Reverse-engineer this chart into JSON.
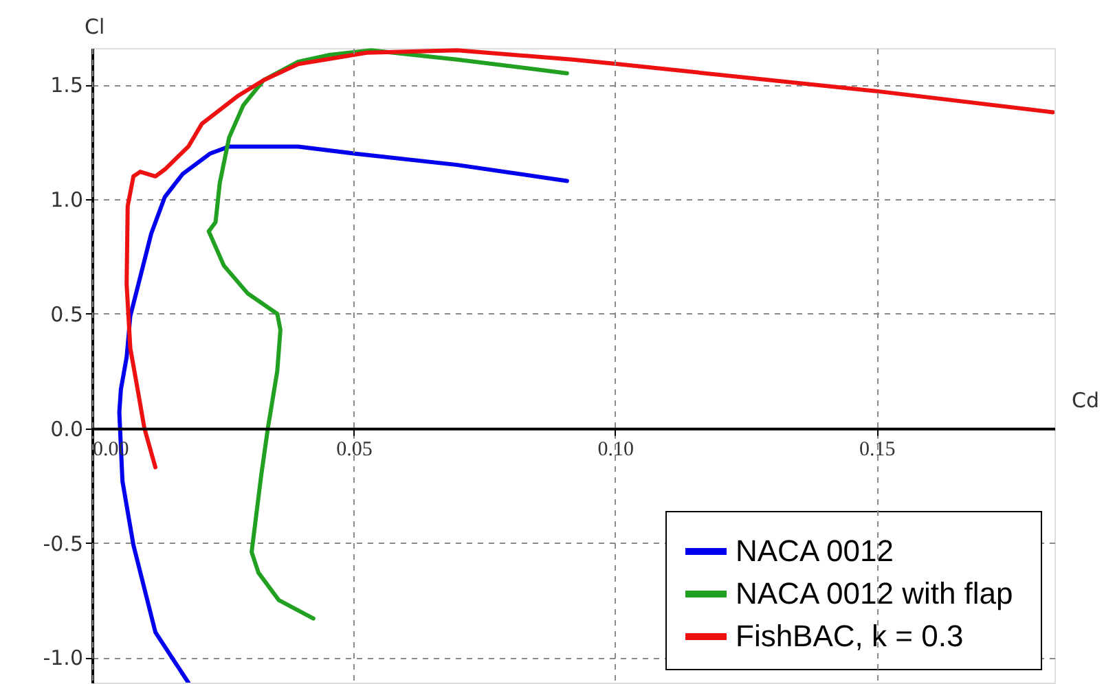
{
  "chart_data": {
    "type": "line",
    "xlabel": "Cd",
    "ylabel": "Cl",
    "xlim": [
      0,
      0.184
    ],
    "ylim": [
      -1.11,
      1.66
    ],
    "xticks": [
      {
        "value": 0,
        "label": "0.00"
      },
      {
        "value": 0.05,
        "label": "0.05"
      },
      {
        "value": 0.1,
        "label": "0.10"
      },
      {
        "value": 0.15,
        "label": "0.15"
      }
    ],
    "yticks": [
      {
        "value": -1,
        "label": "-1.0"
      },
      {
        "value": -0.5,
        "label": "-0.5"
      },
      {
        "value": 0,
        "label": "0.0"
      },
      {
        "value": 0.5,
        "label": "0.5"
      },
      {
        "value": 1,
        "label": "1.0"
      },
      {
        "value": 1.5,
        "label": "1.5"
      }
    ],
    "grid": true,
    "legend": "bottom right",
    "marker": "none",
    "line_style": "solid",
    "series": [
      {
        "name": "NACA 0012",
        "color": "#0000ee",
        "x": [
          0.0184,
          0.0121,
          0.0079,
          0.0058,
          0.0052,
          0.0055,
          0.0066,
          0.0073,
          0.0113,
          0.0139,
          0.0173,
          0.0226,
          0.0262,
          0.0394,
          0.05,
          0.0698,
          0.0908
        ],
        "values": [
          -1.11,
          -0.89,
          -0.51,
          -0.23,
          0.07,
          0.17,
          0.31,
          0.49,
          0.85,
          1.01,
          1.11,
          1.2,
          1.23,
          1.23,
          1.2,
          1.15,
          1.08
        ]
      },
      {
        "name": "NACA 0012 with  flap",
        "color": "#22a022",
        "x": [
          0.0423,
          0.0357,
          0.0318,
          0.0305,
          0.0323,
          0.0336,
          0.0354,
          0.036,
          0.0354,
          0.0297,
          0.0252,
          0.0223,
          0.0236,
          0.0244,
          0.0262,
          0.0289,
          0.0328,
          0.0394,
          0.0454,
          0.0533,
          0.0698,
          0.0908
        ],
        "values": [
          -0.83,
          -0.75,
          -0.63,
          -0.54,
          -0.21,
          0,
          0.25,
          0.43,
          0.5,
          0.59,
          0.71,
          0.86,
          0.9,
          1.07,
          1.27,
          1.41,
          1.52,
          1.6,
          1.63,
          1.65,
          1.61,
          1.55
        ]
      },
      {
        "name": "FishBAC, k = 0.3",
        "color": "#ee1111",
        "x": [
          0.0121,
          0.01,
          0.0087,
          0.0073,
          0.0066,
          0.0068,
          0.0079,
          0.0092,
          0.0121,
          0.0139,
          0.0184,
          0.021,
          0.0278,
          0.0328,
          0.0394,
          0.0525,
          0.0698,
          0.0919,
          0.1005,
          0.1507,
          0.1837
        ],
        "values": [
          -0.17,
          0,
          0.17,
          0.35,
          0.63,
          0.97,
          1.1,
          1.12,
          1.1,
          1.13,
          1.23,
          1.33,
          1.45,
          1.52,
          1.59,
          1.64,
          1.65,
          1.61,
          1.59,
          1.47,
          1.38
        ]
      }
    ]
  }
}
